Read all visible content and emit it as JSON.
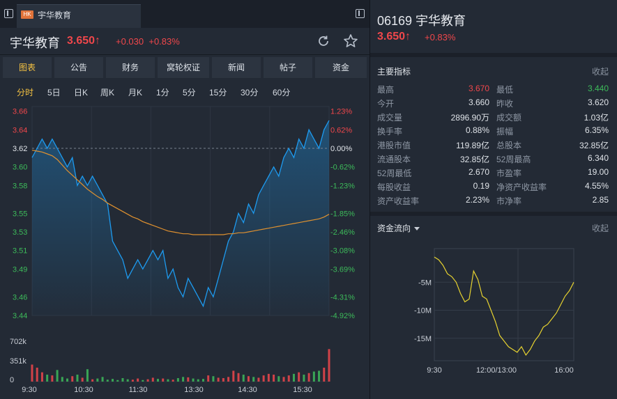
{
  "tab": {
    "badge": "HK",
    "label": "宇华教育"
  },
  "header": {
    "name": "宇华教育",
    "price": "3.650↑",
    "change": "+0.030",
    "change_pct": "+0.83%"
  },
  "toolbar": [
    "图表",
    "公告",
    "财务",
    "窝轮权证",
    "新闻",
    "帖子",
    "资金"
  ],
  "periods": [
    "分时",
    "5日",
    "日K",
    "周K",
    "月K",
    "1分",
    "5分",
    "15分",
    "30分",
    "60分"
  ],
  "colors": {
    "up": "#f0474b",
    "down": "#3dbb5a",
    "price_line": "#1d9bf0",
    "avg_line": "#e0912f",
    "flow_line": "#e6d230",
    "accent": "#f5c242"
  },
  "chart_data": [
    {
      "type": "line",
      "name_price": "price",
      "y_price_ticks": [
        "3.66",
        "3.64",
        "3.62",
        "3.60",
        "3.58",
        "3.55",
        "3.53",
        "3.51",
        "3.49",
        "3.46",
        "3.44"
      ],
      "y_pct_ticks": [
        "1.23%",
        "0.62%",
        "0.00%",
        "-0.62%",
        "-1.23%",
        "-1.85%",
        "-2.46%",
        "-3.08%",
        "-3.69%",
        "-4.31%",
        "-4.92%"
      ],
      "ylim": [
        3.44,
        3.665
      ],
      "prev_close": 3.62,
      "x_ticks": [
        "9:30",
        "10:30",
        "11:30",
        "13:30",
        "14:30",
        "15:30"
      ],
      "price": [
        3.61,
        3.62,
        3.63,
        3.62,
        3.63,
        3.62,
        3.61,
        3.6,
        3.61,
        3.58,
        3.59,
        3.58,
        3.59,
        3.58,
        3.57,
        3.56,
        3.52,
        3.51,
        3.5,
        3.48,
        3.49,
        3.5,
        3.49,
        3.5,
        3.51,
        3.5,
        3.51,
        3.48,
        3.49,
        3.47,
        3.46,
        3.48,
        3.47,
        3.46,
        3.45,
        3.47,
        3.46,
        3.48,
        3.5,
        3.52,
        3.53,
        3.55,
        3.54,
        3.56,
        3.55,
        3.57,
        3.58,
        3.59,
        3.6,
        3.59,
        3.61,
        3.62,
        3.61,
        3.63,
        3.62,
        3.64,
        3.63,
        3.62,
        3.64,
        3.65
      ],
      "avg": [
        3.618,
        3.617,
        3.616,
        3.614,
        3.612,
        3.608,
        3.602,
        3.596,
        3.591,
        3.586,
        3.581,
        3.576,
        3.572,
        3.568,
        3.565,
        3.561,
        3.558,
        3.555,
        3.552,
        3.549,
        3.546,
        3.544,
        3.541,
        3.539,
        3.537,
        3.535,
        3.533,
        3.531,
        3.53,
        3.529,
        3.528,
        3.528,
        3.527,
        3.527,
        3.527,
        3.527,
        3.527,
        3.527,
        3.527,
        3.528,
        3.528,
        3.529,
        3.529,
        3.53,
        3.531,
        3.532,
        3.533,
        3.534,
        3.535,
        3.536,
        3.537,
        3.538,
        3.539,
        3.54,
        3.541,
        3.542,
        3.543,
        3.544,
        3.546,
        3.549
      ],
      "volume_ticks": [
        "702k",
        "351k",
        "0"
      ],
      "volume": [
        220,
        180,
        120,
        90,
        80,
        150,
        60,
        40,
        70,
        90,
        50,
        160,
        30,
        40,
        60,
        25,
        35,
        20,
        45,
        30,
        25,
        40,
        20,
        30,
        50,
        35,
        40,
        30,
        25,
        45,
        60,
        55,
        40,
        30,
        35,
        80,
        70,
        50,
        45,
        60,
        140,
        110,
        90,
        70,
        60,
        50,
        80,
        100,
        90,
        70,
        60,
        80,
        100,
        120,
        90,
        110,
        130,
        140,
        180,
        420
      ]
    },
    {
      "type": "line",
      "name": "资金流向",
      "y_ticks": [
        "-5M",
        "-10M",
        "-15M"
      ],
      "x_ticks": [
        "9:30",
        "12:00/13:00",
        "16:00"
      ],
      "ylim": [
        -19,
        1
      ],
      "values": [
        -0.5,
        -1.0,
        -2.0,
        -3.5,
        -4.0,
        -5.0,
        -7.0,
        -8.5,
        -8.0,
        -3.0,
        -4.5,
        -7.5,
        -8.0,
        -10.0,
        -12.0,
        -14.5,
        -15.5,
        -16.5,
        -17.0,
        -17.5,
        -16.5,
        -18.0,
        -17.0,
        -15.5,
        -14.5,
        -13.0,
        -12.5,
        -11.5,
        -10.5,
        -9.0,
        -7.5,
        -6.5,
        -5.0
      ]
    }
  ],
  "right": {
    "code_name": "06169 宇华教育",
    "price": "3.650↑",
    "change_pct": "+0.83%",
    "indicators_title": "主要指标",
    "collapse": "收起",
    "rows": [
      {
        "l1": "最高",
        "v1": "3.670",
        "c1": "up",
        "l2": "最低",
        "v2": "3.440",
        "c2": "down"
      },
      {
        "l1": "今开",
        "v1": "3.660",
        "c1": "",
        "l2": "昨收",
        "v2": "3.620",
        "c2": ""
      },
      {
        "l1": "成交量",
        "v1": "2896.90万",
        "c1": "",
        "l2": "成交额",
        "v2": "1.03亿",
        "c2": ""
      },
      {
        "l1": "换手率",
        "v1": "0.88%",
        "c1": "",
        "l2": "振幅",
        "v2": "6.35%",
        "c2": ""
      },
      {
        "l1": "港股市值",
        "v1": "119.89亿",
        "c1": "",
        "l2": "总股本",
        "v2": "32.85亿",
        "c2": ""
      },
      {
        "l1": "流通股本",
        "v1": "32.85亿",
        "c1": "",
        "l2": "52周最高",
        "v2": "6.340",
        "c2": ""
      },
      {
        "l1": "52周最低",
        "v1": "2.670",
        "c1": "",
        "l2": "市盈率",
        "v2": "19.00",
        "c2": ""
      },
      {
        "l1": "每股收益",
        "v1": "0.19",
        "c1": "",
        "l2": "净资产收益率",
        "v2": "4.55%",
        "c2": ""
      },
      {
        "l1": "资产收益率",
        "v1": "2.23%",
        "c1": "",
        "l2": "市净率",
        "v2": "2.85",
        "c2": ""
      }
    ],
    "flow_title": "资金流向",
    "flow_collapse": "收起"
  }
}
